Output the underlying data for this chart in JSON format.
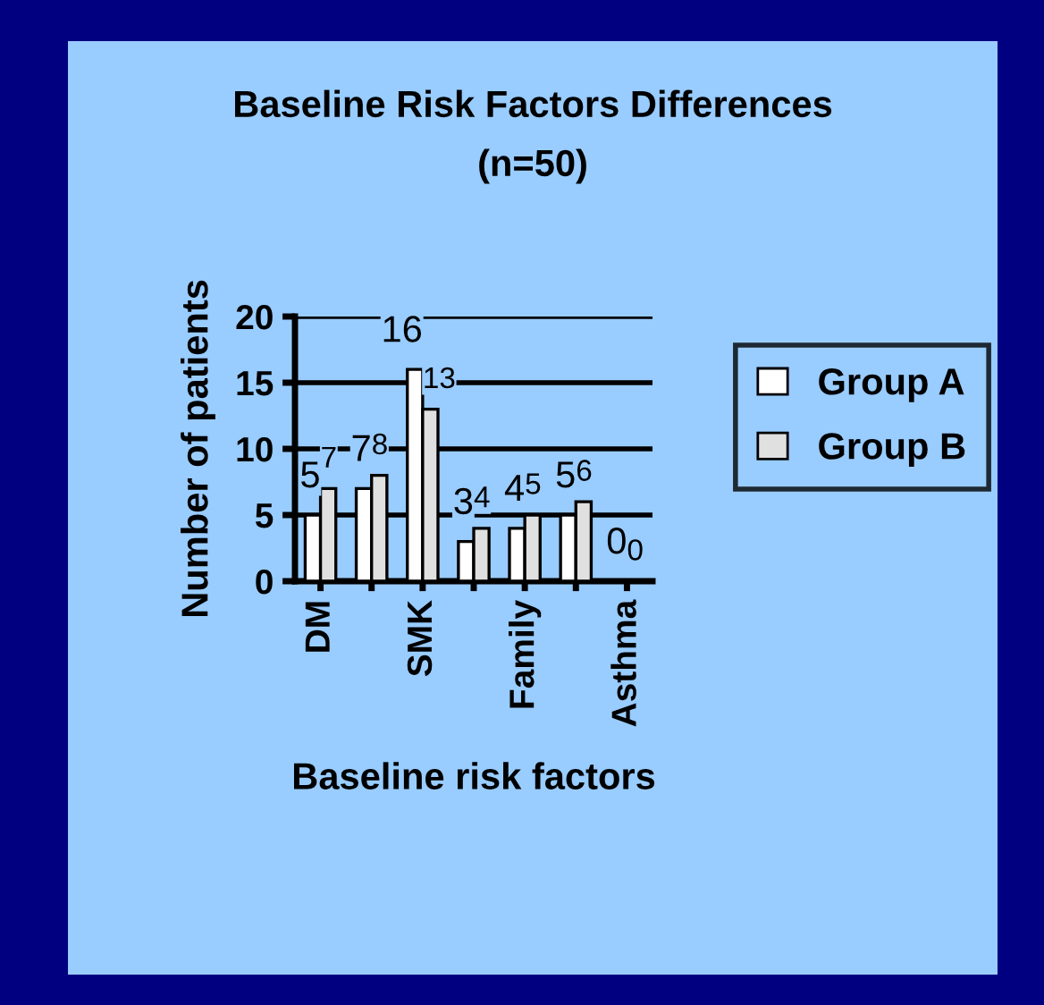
{
  "chart_data": {
    "type": "bar",
    "title": "Baseline Risk Factors Differences",
    "subtitle": "(n=50)",
    "xlabel": "Baseline risk factors",
    "ylabel": "Number of patients",
    "categories": [
      "DM",
      null,
      "SMK",
      null,
      "Family",
      null,
      "Asthma"
    ],
    "series": [
      {
        "name": "Group A",
        "color": "#ffffff",
        "values": [
          5,
          7,
          16,
          3,
          4,
          5,
          0
        ]
      },
      {
        "name": "Group B",
        "color": "#e0e0e0",
        "values": [
          7,
          8,
          13,
          4,
          5,
          6,
          0
        ]
      }
    ],
    "ylim": [
      0,
      20
    ],
    "yticks": [
      0,
      5,
      10,
      15,
      20
    ],
    "grid": "y",
    "legend": "right",
    "data_labels": true
  }
}
